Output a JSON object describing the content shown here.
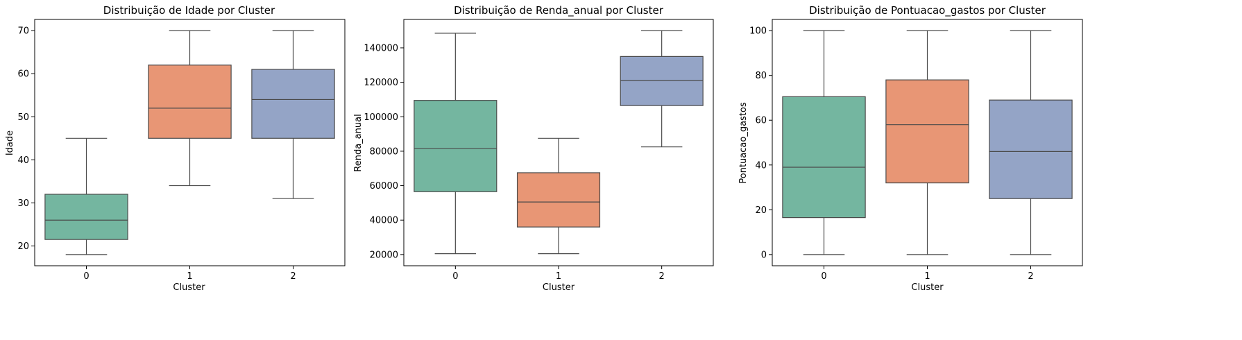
{
  "colors": {
    "cluster_0": "#74b6a0",
    "cluster_1": "#e89675",
    "cluster_2": "#94a4c6"
  },
  "chart_data": [
    {
      "type": "box",
      "title": "Distribuição de Idade por Cluster",
      "xlabel": "Cluster",
      "ylabel": "Idade",
      "categories": [
        "0",
        "1",
        "2"
      ],
      "ylim": [
        15.4,
        72.6
      ],
      "yticks": [
        20,
        30,
        40,
        50,
        60,
        70
      ],
      "boxes": [
        {
          "min": 18,
          "q1": 21.5,
          "median": 26,
          "q3": 32,
          "max": 45
        },
        {
          "min": 34,
          "q1": 45,
          "median": 52,
          "q3": 62,
          "max": 70
        },
        {
          "min": 31,
          "q1": 45,
          "median": 54,
          "q3": 61,
          "max": 70
        }
      ]
    },
    {
      "type": "box",
      "title": "Distribuição de Renda_anual por Cluster",
      "xlabel": "Cluster",
      "ylabel": "Renda_anual",
      "categories": [
        "0",
        "1",
        "2"
      ],
      "ylim": [
        13500,
        156500
      ],
      "yticks": [
        20000,
        40000,
        60000,
        80000,
        100000,
        120000,
        140000
      ],
      "boxes": [
        {
          "min": 20500,
          "q1": 56500,
          "median": 81500,
          "q3": 109500,
          "max": 148500
        },
        {
          "min": 20500,
          "q1": 36000,
          "median": 50500,
          "q3": 67500,
          "max": 87500
        },
        {
          "min": 82500,
          "q1": 106500,
          "median": 121000,
          "q3": 135000,
          "max": 150000
        }
      ]
    },
    {
      "type": "box",
      "title": "Distribuição de Pontuacao_gastos por Cluster",
      "xlabel": "Cluster",
      "ylabel": "Pontuacao_gastos",
      "categories": [
        "0",
        "1",
        "2"
      ],
      "ylim": [
        -5,
        105
      ],
      "yticks": [
        0,
        20,
        40,
        60,
        80,
        100
      ],
      "boxes": [
        {
          "min": 0,
          "q1": 16.5,
          "median": 39,
          "q3": 70.5,
          "max": 100
        },
        {
          "min": 0,
          "q1": 32,
          "median": 58,
          "q3": 78,
          "max": 100
        },
        {
          "min": 0,
          "q1": 25,
          "median": 46,
          "q3": 69,
          "max": 100
        }
      ]
    }
  ]
}
